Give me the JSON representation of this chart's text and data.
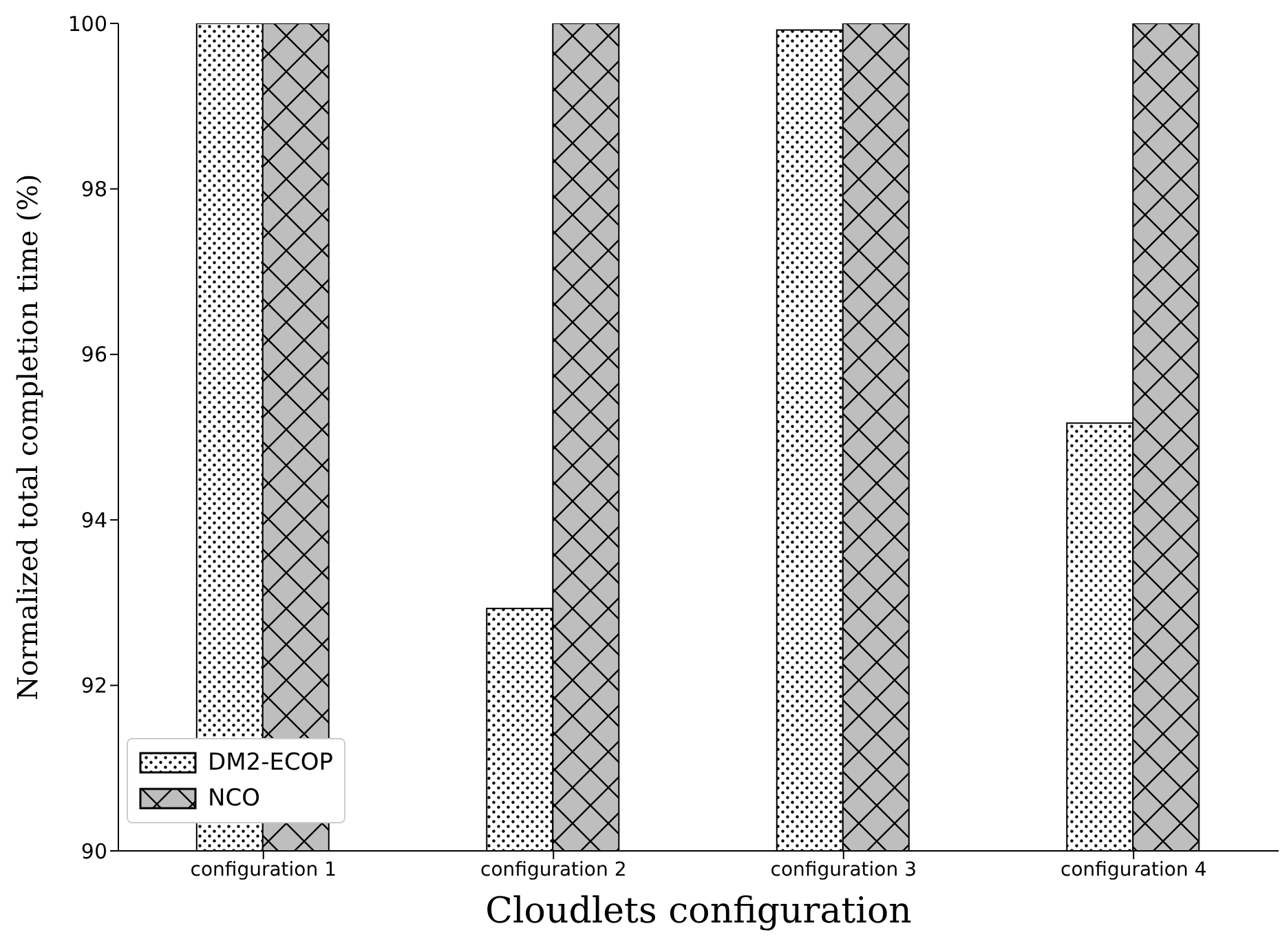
{
  "chart_data": {
    "type": "bar",
    "xlabel": "Cloudlets configuration",
    "ylabel": "Normalized total completion time (%)",
    "categories": [
      "configuration 1",
      "configuration 2",
      "configuration 3",
      "configuration 4"
    ],
    "series": [
      {
        "name": "DM2-ECOP",
        "color": "#ffffff",
        "values": [
          100,
          92.93,
          99.92,
          95.17
        ]
      },
      {
        "name": "NCO",
        "color": "#bebebe",
        "values": [
          100,
          100,
          100,
          100
        ]
      }
    ],
    "ylim": [
      90,
      100
    ],
    "yticks": [
      90,
      92,
      94,
      96,
      98,
      100
    ],
    "grid": false,
    "legend": "bottom left"
  }
}
